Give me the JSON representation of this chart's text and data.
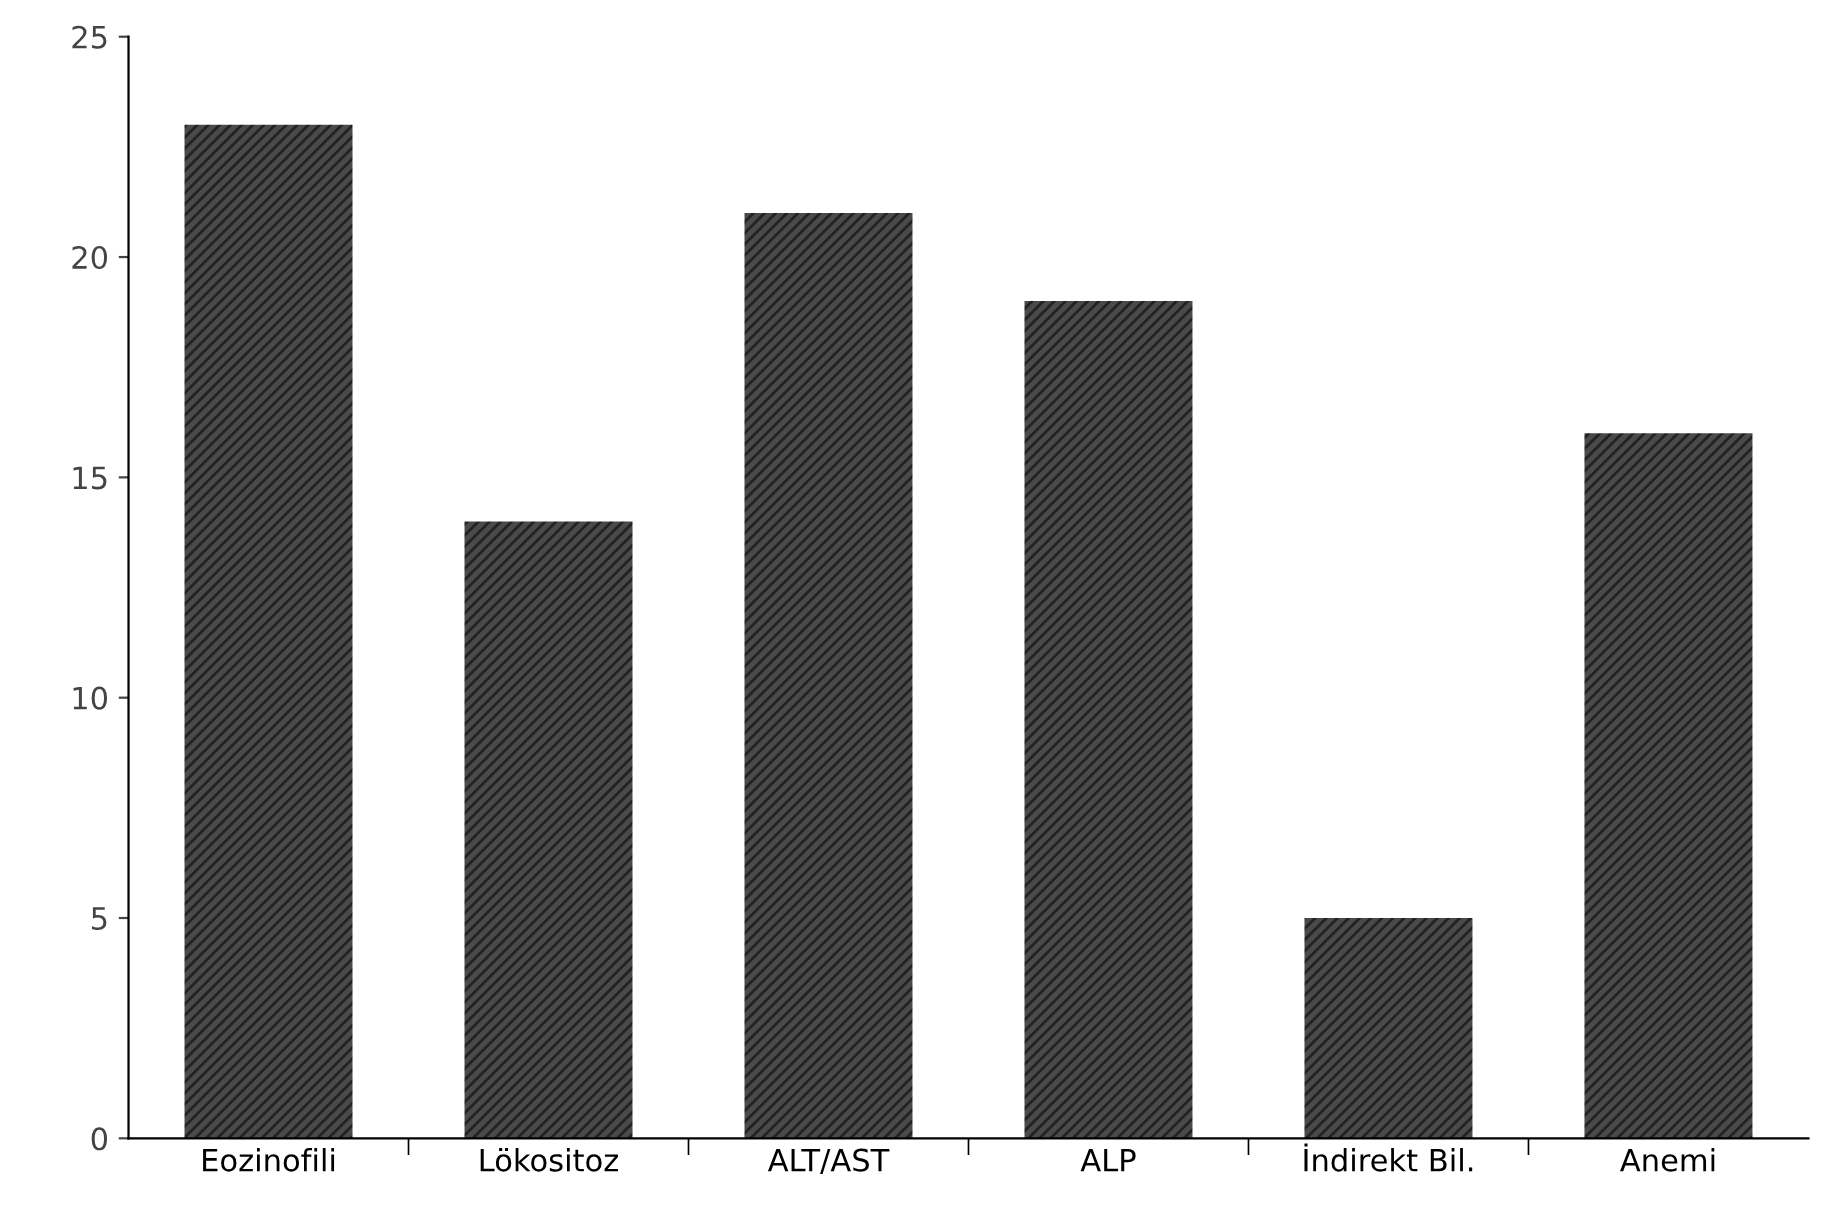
{
  "chart_data": {
    "type": "bar",
    "categories": [
      "Eozinofili",
      "Lökositoz",
      "ALT/AST",
      "ALP",
      "İndirekt Bil.",
      "Anemi"
    ],
    "values": [
      23,
      14,
      21,
      19,
      5,
      16
    ],
    "color": "#4a4a4a",
    "ylim": [
      0,
      25
    ],
    "yticks": [
      0,
      5,
      10,
      15,
      20,
      25
    ],
    "grid": false
  }
}
